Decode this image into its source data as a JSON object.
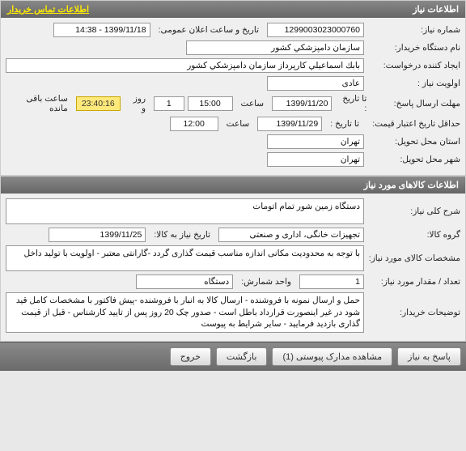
{
  "panel1": {
    "title": "اطلاعات نیاز",
    "contact_link": "اطلاعات تماس خریدار",
    "need_number_label": "شماره نیاز:",
    "need_number": "1299003023000760",
    "announce_label": "تاریخ و ساعت اعلان عمومی:",
    "announce_value": "1399/11/18 - 14:38",
    "device_name_label": "نام دستگاه خریدار:",
    "device_name": "سازمان دامپزشكي كشور",
    "requester_label": "ایجاد کننده درخواست:",
    "requester": "بابك اسماعيلي كارپرداز سازمان دامپزشكي كشور",
    "priority_label": "اولویت نیاز :",
    "priority": "عادی",
    "deadline_label": "مهلت ارسال پاسخ:",
    "until_label": "تا تاریخ :",
    "deadline_date": "1399/11/20",
    "time_label": "ساعت",
    "deadline_time": "15:00",
    "remaining_days": "1",
    "day_and": "روز و",
    "remaining_time": "23:40:16",
    "remaining_suffix": "ساعت باقی مانده",
    "validity_label": "حداقل تاریخ اعتبار قیمت:",
    "validity_date": "1399/11/29",
    "validity_time": "12:00",
    "province_label": "استان محل تحویل:",
    "province": "تهران",
    "city_label": "شهر محل تحویل:",
    "city": "تهران"
  },
  "panel2": {
    "title": "اطلاعات کالاهای مورد نیاز",
    "desc_label": "شرح کلی نیاز:",
    "desc": "دستگاه زمین شور تمام اتومات",
    "group_label": "گروه کالا:",
    "group": "تجهیزات خانگی، اداری و صنعتی",
    "need_date_label": "تاریخ نیاز به کالا:",
    "need_date": "1399/11/25",
    "spec_label": "مشخصات کالای مورد نیاز:",
    "spec": "با توجه به محدودیت مکانی اندازه مناسب قیمت گذاری گردد -گارانتی معتبر -  اولویت با تولید داخل",
    "qty_label": "تعداد / مقدار مورد نیاز:",
    "qty": "1",
    "unit_label": "واحد شمارش:",
    "unit": "دستگاه",
    "notes_label": "توضیحات خریدار:",
    "notes": "حمل و ارسال نمونه با فروشنده - ارسال کالا به انبار با فروشنده -پیش فاکتور با مشخصات کامل قید شود در غیر اینصورت قرارداد باطل است - صدور چک 20 روز پس از تایید کارشناس - قبل از قیمت گذاری بازدید فرمایید - سایر شرایط به پیوست"
  },
  "buttons": {
    "reply": "پاسخ به نیاز",
    "view_attach": "مشاهده مدارک پیوستی (1)",
    "back": "بازگشت",
    "exit": "خروج"
  },
  "colors": {
    "header_grad_top": "#888888",
    "header_grad_bot": "#666666",
    "highlight_bg": "#ffe97a",
    "body_bg": "#efefef"
  }
}
